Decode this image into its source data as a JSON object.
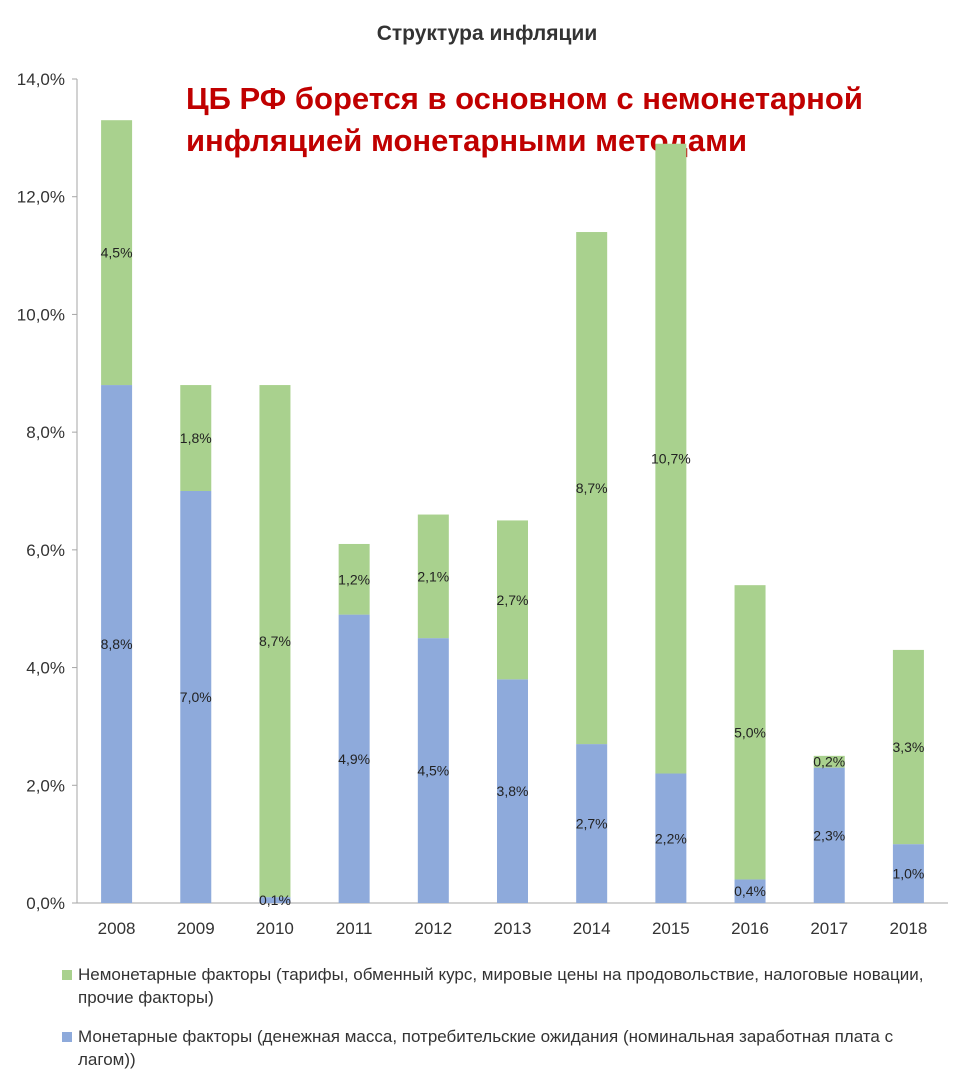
{
  "chart_data": {
    "type": "bar",
    "stacked": true,
    "title": "Структура инфляции",
    "annotation": "ЦБ РФ борется в основном с немонетарной инфляцией монетарными методами",
    "categories": [
      "2008",
      "2009",
      "2010",
      "2011",
      "2012",
      "2013",
      "2014",
      "2015",
      "2016",
      "2017",
      "2018"
    ],
    "series": [
      {
        "name": "Монетарные факторы (денежная масса, потребительские ожидания (номинальная заработная плата с лагом))",
        "color": "#8eaadb",
        "values": [
          8.8,
          7.0,
          0.1,
          4.9,
          4.5,
          3.8,
          2.7,
          2.2,
          0.4,
          2.3,
          1.0
        ],
        "labels": [
          "8,8%",
          "7,0%",
          "0,1%",
          "4,9%",
          "4,5%",
          "3,8%",
          "2,7%",
          "2,2%",
          "0,4%",
          "2,3%",
          "1,0%"
        ]
      },
      {
        "name": "Немонетарные факторы (тарифы, обменный курс, мировые цены на продовольствие, налоговые новации, прочие факторы)",
        "color": "#a9d18e",
        "values": [
          4.5,
          1.8,
          8.7,
          1.2,
          2.1,
          2.7,
          8.7,
          10.7,
          5.0,
          0.2,
          3.3
        ],
        "labels": [
          "4,5%",
          "1,8%",
          "8,7%",
          "1,2%",
          "2,1%",
          "2,7%",
          "8,7%",
          "10,7%",
          "5,0%",
          "0,2%",
          "3,3%"
        ]
      }
    ],
    "ylim": [
      0,
      14
    ],
    "yticks": [
      0,
      2,
      4,
      6,
      8,
      10,
      12,
      14
    ],
    "ytick_labels": [
      "0,0%",
      "2,0%",
      "4,0%",
      "6,0%",
      "8,0%",
      "10,0%",
      "12,0%",
      "14,0%"
    ],
    "grid": false,
    "legend_position": "bottom"
  }
}
